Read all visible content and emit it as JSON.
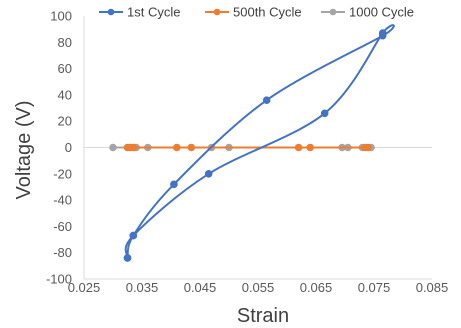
{
  "chart_data": {
    "type": "scatter",
    "title": "",
    "xlabel": "Strain",
    "ylabel": "Voltage (V)",
    "xlim": [
      0.025,
      0.085
    ],
    "ylim": [
      -100,
      100
    ],
    "x_ticks": [
      0.025,
      0.035,
      0.045,
      0.055,
      0.065,
      0.075,
      0.085
    ],
    "x_tick_labels": [
      "0.025",
      "0.035",
      "0.045",
      "0.055",
      "0.065",
      "0.075",
      "0.085"
    ],
    "y_ticks": [
      -100,
      -80,
      -60,
      -40,
      -20,
      0,
      20,
      40,
      60,
      80,
      100
    ],
    "y_tick_labels": [
      "-100",
      "-80",
      "-60",
      "-40",
      "-20",
      "0",
      "20",
      "40",
      "60",
      "80",
      "100"
    ],
    "grid": false,
    "legend_position": "top",
    "series": [
      {
        "name": "1st Cycle",
        "color": "#4472C4",
        "marker": "circle",
        "smooth": true,
        "points": [
          [
            0.0325,
            -84
          ],
          [
            0.0335,
            -67
          ],
          [
            0.0405,
            -28
          ],
          [
            0.0565,
            36
          ],
          [
            0.0765,
            85
          ],
          [
            0.0765,
            87
          ],
          [
            0.0665,
            26
          ],
          [
            0.0465,
            -20
          ],
          [
            0.0335,
            -67
          ],
          [
            0.0325,
            -84
          ]
        ]
      },
      {
        "name": "500th Cycle",
        "color": "#ED7D31",
        "marker": "circle",
        "smooth": false,
        "points": [
          [
            0.0325,
            0
          ],
          [
            0.033,
            0
          ],
          [
            0.0335,
            0
          ],
          [
            0.041,
            0
          ],
          [
            0.0435,
            0
          ],
          [
            0.062,
            0
          ],
          [
            0.064,
            0
          ],
          [
            0.0735,
            0
          ],
          [
            0.074,
            0
          ]
        ]
      },
      {
        "name": "1000 Cycle",
        "color": "#A5A5A5",
        "marker": "circle",
        "smooth": false,
        "points": [
          [
            0.03,
            0
          ],
          [
            0.034,
            0
          ],
          [
            0.036,
            0
          ],
          [
            0.047,
            0
          ],
          [
            0.05,
            0
          ],
          [
            0.0695,
            0
          ],
          [
            0.0705,
            0
          ],
          [
            0.073,
            0
          ],
          [
            0.0745,
            0
          ]
        ]
      }
    ]
  }
}
